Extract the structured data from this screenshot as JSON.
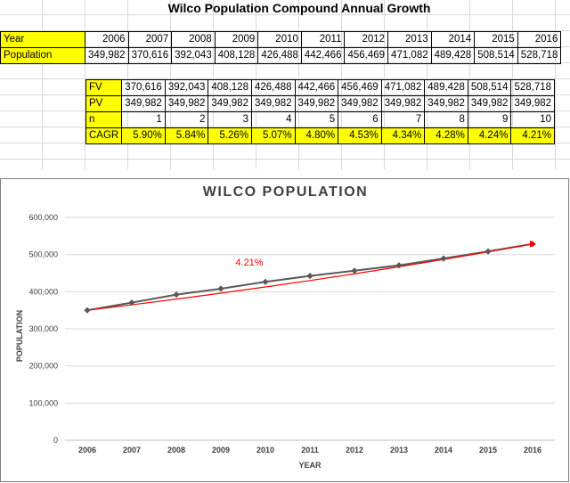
{
  "sheet": {
    "title": "Wilco Population Compound Annual Growth",
    "year_label": "Year",
    "population_label": "Population",
    "years": [
      "2006",
      "2007",
      "2008",
      "2009",
      "2010",
      "2011",
      "2012",
      "2013",
      "2014",
      "2015",
      "2016"
    ],
    "population": [
      "349,982",
      "370,616",
      "392,043",
      "408,128",
      "426,488",
      "442,466",
      "456,469",
      "471,082",
      "489,428",
      "508,514",
      "528,718"
    ],
    "calc": {
      "fv_label": "FV",
      "pv_label": "PV",
      "n_label": "n",
      "cagr_label": "CAGR",
      "fv": [
        "370,616",
        "392,043",
        "408,128",
        "426,488",
        "442,466",
        "456,469",
        "471,082",
        "489,428",
        "508,514",
        "528,718"
      ],
      "pv": [
        "349,982",
        "349,982",
        "349,982",
        "349,982",
        "349,982",
        "349,982",
        "349,982",
        "349,982",
        "349,982",
        "349,982"
      ],
      "n": [
        "1",
        "2",
        "3",
        "4",
        "5",
        "6",
        "7",
        "8",
        "9",
        "10"
      ],
      "cagr": [
        "5.90%",
        "5.84%",
        "5.26%",
        "5.07%",
        "4.80%",
        "4.53%",
        "4.34%",
        "4.28%",
        "4.24%",
        "4.21%"
      ]
    }
  },
  "colors": {
    "highlight": "#ffff00",
    "series": "#595959",
    "trendline": "#ff0000",
    "gridline": "#d9d9d9"
  },
  "chart_data": {
    "type": "line",
    "title": "WILCO POPULATION",
    "xlabel": "YEAR",
    "ylabel": "POPULATION",
    "x": [
      2006,
      2007,
      2008,
      2009,
      2010,
      2011,
      2012,
      2013,
      2014,
      2015,
      2016
    ],
    "ylim": [
      0,
      600000
    ],
    "yticks": [
      "0",
      "100,000",
      "200,000",
      "300,000",
      "400,000",
      "500,000",
      "600,000"
    ],
    "grid": true,
    "series": [
      {
        "values": [
          349982,
          370616,
          392043,
          408128,
          426488,
          442466,
          456469,
          471082,
          489428,
          508514,
          528718
        ],
        "marker": "diamond"
      }
    ],
    "trendline": {
      "type": "exponential",
      "start": 349982,
      "rate": 0.0421,
      "label": "4.21%"
    }
  }
}
